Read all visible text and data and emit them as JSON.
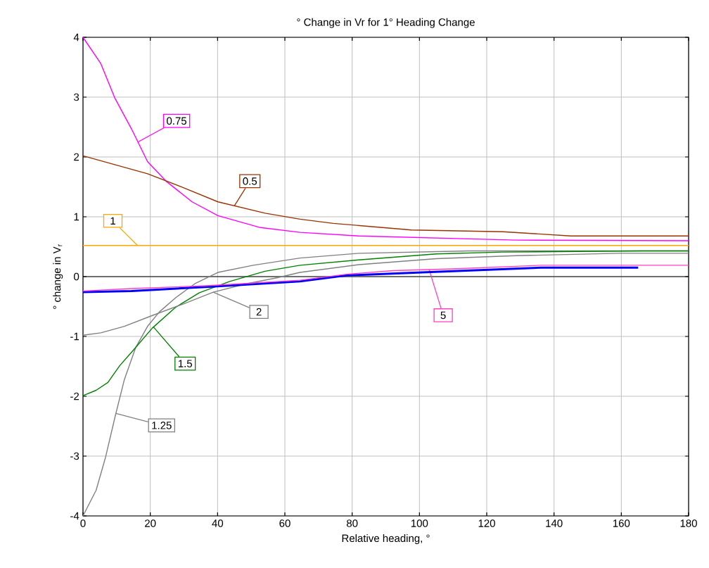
{
  "chart_data": {
    "type": "line",
    "title": "° Change in Vr for 1° Heading Change",
    "xlabel": "Relative heading, °",
    "ylabel": "° change in V$_{r}$",
    "xlim": [
      0,
      180
    ],
    "ylim": [
      -4,
      4
    ],
    "xticks": [
      0,
      20,
      40,
      60,
      80,
      100,
      120,
      140,
      160,
      180
    ],
    "yticks": [
      -4,
      -3,
      -2,
      -1,
      0,
      1,
      2,
      3,
      4
    ],
    "grid": true,
    "ref_lines": [
      {
        "axis": "y",
        "value": 0,
        "color": "#000000"
      }
    ],
    "series": [
      {
        "name": "0.75",
        "color": "#ff00ff",
        "x": [
          0,
          5.3,
          9.5,
          14.4,
          19.2,
          24.8,
          32.4,
          40.1,
          52.7,
          64.5,
          82,
          128.6,
          180
        ],
        "values": [
          4.0,
          3.56,
          2.98,
          2.47,
          1.92,
          1.59,
          1.25,
          1.02,
          0.82,
          0.74,
          0.68,
          0.61,
          0.6
        ]
      },
      {
        "name": "0.5",
        "color": "#993300",
        "x": [
          0,
          19.2,
          29.7,
          40.1,
          54.1,
          64.5,
          74.4,
          97.6,
          124.8,
          145,
          180
        ],
        "values": [
          2.02,
          1.72,
          1.49,
          1.25,
          1.06,
          0.96,
          0.89,
          0.78,
          0.75,
          0.68,
          0.68
        ]
      },
      {
        "name": "1",
        "color": "#ffa500",
        "x": [
          0,
          180
        ],
        "values": [
          0.52,
          0.52
        ]
      },
      {
        "name": "1.25",
        "color": "#808080",
        "x": [
          0,
          3.9,
          6.7,
          9.5,
          12.3,
          15.7,
          19.2,
          22.7,
          27.6,
          33.2,
          40.1,
          50.6,
          64.5,
          82,
          114.8,
          180
        ],
        "values": [
          -4.0,
          -3.57,
          -3.02,
          -2.35,
          -1.72,
          -1.18,
          -0.83,
          -0.59,
          -0.35,
          -0.12,
          0.07,
          0.19,
          0.31,
          0.39,
          0.43,
          0.43
        ]
      },
      {
        "name": "1.5",
        "color": "#008000",
        "x": [
          0,
          3.9,
          7.4,
          10.9,
          15.1,
          20.6,
          27.6,
          34.6,
          43.6,
          54.1,
          64.5,
          82,
          105,
          124.8,
          165.8,
          180
        ],
        "values": [
          -1.99,
          -1.9,
          -1.77,
          -1.49,
          -1.22,
          -0.86,
          -0.51,
          -0.27,
          -0.08,
          0.09,
          0.19,
          0.28,
          0.38,
          0.41,
          0.43,
          0.43
        ]
      },
      {
        "name": "2",
        "color": "#808080",
        "x": [
          0,
          5.3,
          12.3,
          20.6,
          29.7,
          38.7,
          48.5,
          57.6,
          64.5,
          82,
          105,
          128.6,
          159.5,
          180
        ],
        "values": [
          -0.98,
          -0.94,
          -0.83,
          -0.65,
          -0.46,
          -0.26,
          -0.12,
          -0.02,
          0.07,
          0.2,
          0.3,
          0.35,
          0.39,
          0.39
        ]
      },
      {
        "color": "#0000ff",
        "x": [
          0,
          14.4,
          37.4,
          64.5,
          78.3,
          100.8,
          136.3,
          165
        ],
        "values": [
          -0.26,
          -0.24,
          -0.17,
          -0.08,
          0.02,
          0.07,
          0.15,
          0.15
        ]
      },
      {
        "name": "5",
        "color": "#ff40c0",
        "x": [
          0,
          14.4,
          37.4,
          64.5,
          78.3,
          92.2,
          110,
          136.3,
          180
        ],
        "values": [
          -0.24,
          -0.2,
          -0.15,
          -0.06,
          0.04,
          0.1,
          0.13,
          0.19,
          0.19
        ]
      }
    ]
  }
}
